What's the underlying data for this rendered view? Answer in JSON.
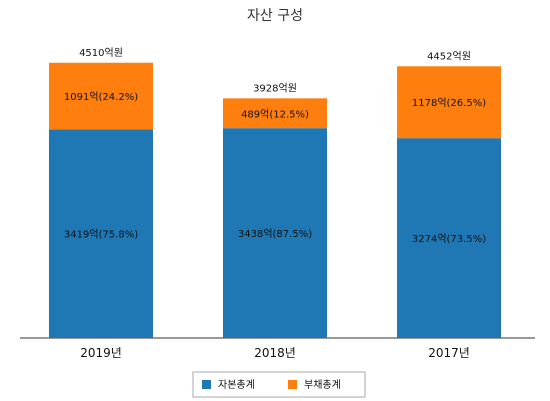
{
  "chart_data": {
    "type": "bar",
    "stacked": true,
    "title": "자산 구성",
    "categories": [
      "2019년",
      "2018년",
      "2017년"
    ],
    "series": [
      {
        "name": "자본총계",
        "color": "#1f77b4",
        "values": [
          3419,
          3438,
          3274
        ],
        "labels": [
          "3419억(75.8%)",
          "3438억(87.5%)",
          "3274억(73.5%)"
        ]
      },
      {
        "name": "부채총계",
        "color": "#ff7f0e",
        "values": [
          1091,
          489,
          1178
        ],
        "labels": [
          "1091억(24.2%)",
          "489억(12.5%)",
          "1178억(26.5%)"
        ]
      }
    ],
    "totals": [
      4510,
      3928,
      4452
    ],
    "total_labels": [
      "4510억원",
      "3928억원",
      "4452억원"
    ],
    "ylim": [
      0,
      4850
    ],
    "grid": false,
    "legend": "bottom"
  }
}
